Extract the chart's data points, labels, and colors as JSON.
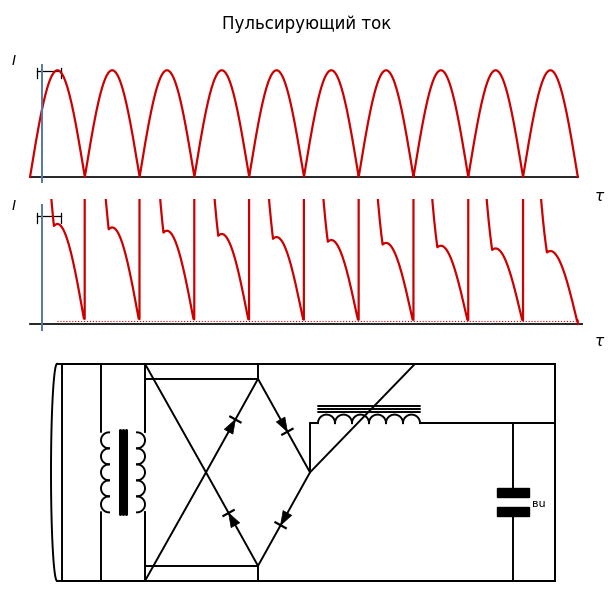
{
  "title": "Пульсирующий ток",
  "title_fontsize": 12,
  "bg_color": "#ffffff",
  "wave_color": "#cc0000",
  "blue_color": "#5577aa",
  "tau_label": "τ",
  "current_label": "I",
  "n_cycles": 10,
  "cap_label": "вu"
}
